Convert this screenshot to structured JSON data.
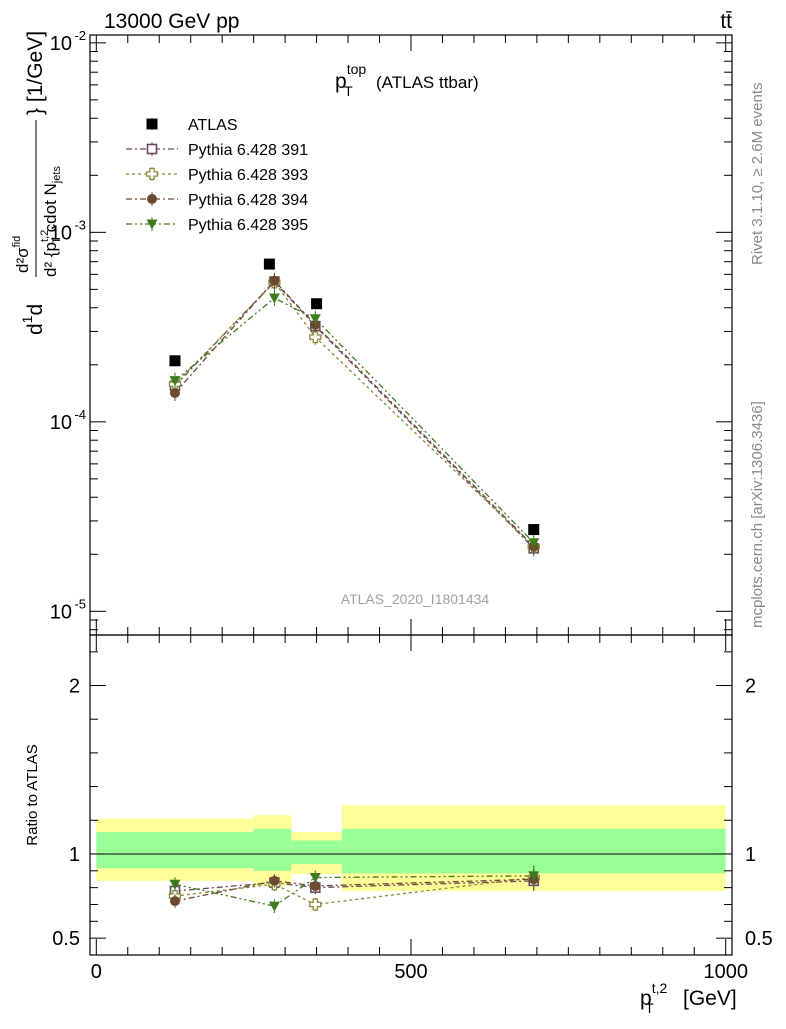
{
  "header": {
    "left": "13000 GeV pp",
    "right": "tt̄"
  },
  "side_labels": {
    "rivet": "Rivet 3.1.10, ≥ 2.6M events",
    "mcplots": "mcplots.cern.ch [arXiv:1306.3436]"
  },
  "chart_data": [
    {
      "type": "scatter",
      "title": "p_T^top (ATLAS ttbar)",
      "title_parts": {
        "base": "p",
        "sub": "T",
        "sup": "top",
        "rest": "(ATLAS ttbar)"
      },
      "ylabel": "d²σ^{fid} / d² {p_T^{t,2} cdot N_jets} [1/GeV]",
      "ylabel_parts": {
        "prefix": "d",
        "rest": "} [1/GeV]"
      },
      "watermark": "ATLAS_2020_I1801434",
      "y_scale": "log",
      "ylim": [
        7.5e-06,
        0.011
      ],
      "xlim": [
        -10,
        1010
      ],
      "y_ticks": [
        {
          "value": 0.01,
          "mantissa": "10",
          "exponent": "-2"
        },
        {
          "value": 0.001,
          "mantissa": "10",
          "exponent": "-3"
        },
        {
          "value": 0.0001,
          "mantissa": "10",
          "exponent": "-4"
        },
        {
          "value": 1e-05,
          "mantissa": "10",
          "exponent": "-5"
        }
      ],
      "legend_position": "top-left",
      "series": [
        {
          "name": "ATLAS",
          "marker": "filled-square",
          "color": "#000000",
          "x": [
            125,
            275,
            350,
            695
          ],
          "y": [
            0.00021,
            0.00068,
            0.00042,
            2.7e-05
          ]
        },
        {
          "name": "Pythia 6.428 391",
          "marker": "open-square",
          "color": "#6b4a5e",
          "x": [
            125,
            283,
            348,
            695
          ],
          "y": [
            0.000155,
            0.00055,
            0.00032,
            2.15e-05
          ]
        },
        {
          "name": "Pythia 6.428 393",
          "marker": "open-cross",
          "color": "#8a8a3a",
          "x": [
            125,
            283,
            348,
            695
          ],
          "y": [
            0.000158,
            0.000545,
            0.00028,
            2.2e-05
          ]
        },
        {
          "name": "Pythia 6.428 394",
          "marker": "filled-circle",
          "color": "#6b4a30",
          "x": [
            125,
            283,
            348,
            695
          ],
          "y": [
            0.000142,
            0.000555,
            0.000325,
            2.2e-05
          ]
        },
        {
          "name": "Pythia 6.428 395",
          "marker": "filled-triangle-down",
          "color": "#3f7a1e",
          "x": [
            125,
            283,
            348,
            695
          ],
          "y": [
            0.000165,
            0.00045,
            0.00035,
            2.3e-05
          ]
        }
      ]
    },
    {
      "type": "scatter",
      "ylabel": "Ratio to ATLAS",
      "xlabel": "p_T^{t,2} [GeV]",
      "xlabel_parts": {
        "base": "p",
        "sub": "T",
        "sup": "t,2",
        "rest": "[GeV]"
      },
      "ylim": [
        0.4,
        2.3
      ],
      "xlim": [
        -10,
        1010
      ],
      "y_ticks": [
        0.5,
        1,
        2
      ],
      "y_tick_labels": [
        "0.5",
        "1",
        "2"
      ],
      "x_ticks": [
        0,
        500,
        1000
      ],
      "x_tick_labels": [
        "0",
        "500",
        "1000"
      ],
      "reference_line": 1,
      "bands": [
        {
          "x_range": [
            0,
            250
          ],
          "green": [
            0.915,
            1.13
          ],
          "yellow": [
            0.84,
            1.21
          ]
        },
        {
          "x_range": [
            250,
            310
          ],
          "green": [
            0.9,
            1.15
          ],
          "yellow": [
            0.81,
            1.23
          ]
        },
        {
          "x_range": [
            310,
            390
          ],
          "green": [
            0.94,
            1.08
          ],
          "yellow": [
            0.88,
            1.13
          ]
        },
        {
          "x_range": [
            390,
            1000
          ],
          "green": [
            0.885,
            1.15
          ],
          "yellow": [
            0.78,
            1.29
          ]
        }
      ],
      "band_colors": {
        "green": "#99ff99",
        "yellow": "#ffff99"
      },
      "series": [
        {
          "name": "Pythia 6.428 391",
          "x": [
            125,
            283,
            348,
            695
          ],
          "y": [
            0.78,
            0.83,
            0.8,
            0.84
          ],
          "err": [
            0.04,
            0.04,
            0.04,
            0.06
          ]
        },
        {
          "name": "Pythia 6.428 393",
          "x": [
            125,
            283,
            348,
            695
          ],
          "y": [
            0.75,
            0.82,
            0.7,
            0.86
          ],
          "err": [
            0.04,
            0.04,
            0.04,
            0.06
          ]
        },
        {
          "name": "Pythia 6.428 394",
          "x": [
            125,
            283,
            348,
            695
          ],
          "y": [
            0.72,
            0.84,
            0.81,
            0.85
          ],
          "err": [
            0.04,
            0.04,
            0.04,
            0.06
          ]
        },
        {
          "name": "Pythia 6.428 395",
          "x": [
            125,
            283,
            348,
            695
          ],
          "y": [
            0.82,
            0.69,
            0.86,
            0.87
          ],
          "err": [
            0.04,
            0.04,
            0.04,
            0.06
          ]
        }
      ]
    }
  ]
}
